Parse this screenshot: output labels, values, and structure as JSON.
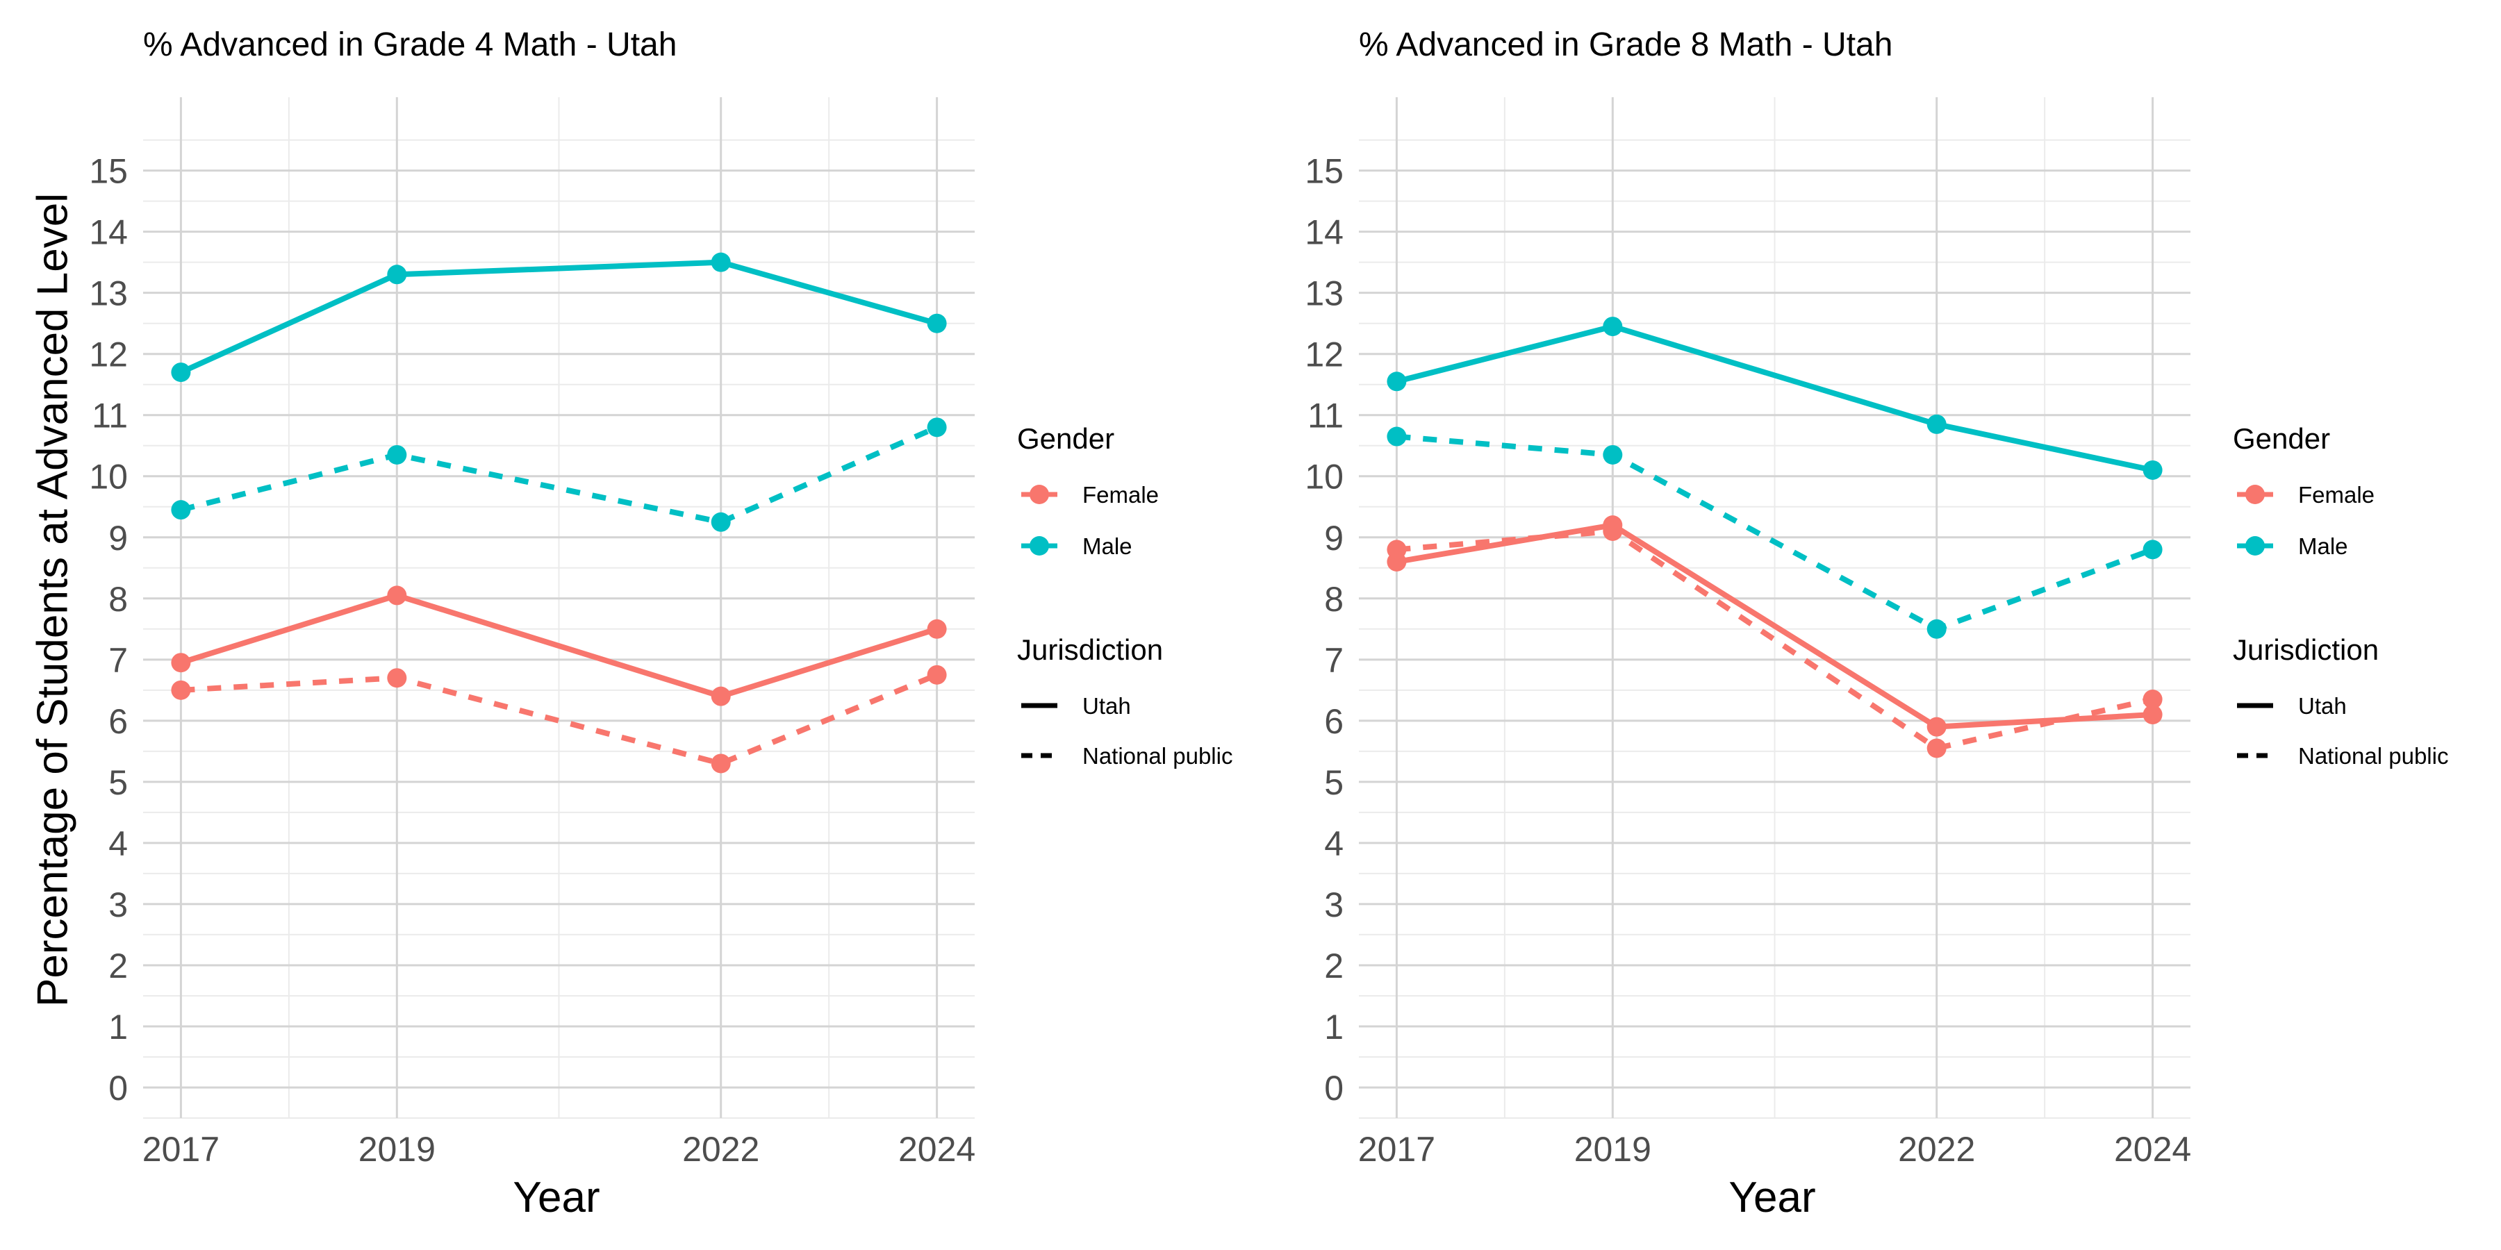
{
  "y_axis_label": "Percentage of Students at Advanced Level",
  "legend": {
    "gender_title": "Gender",
    "jurisdiction_title": "Jurisdiction",
    "gender_items": [
      {
        "label": "Female",
        "color": "#F8766D"
      },
      {
        "label": "Male",
        "color": "#00BFC4"
      }
    ],
    "jurisdiction_items": [
      {
        "label": "Utah",
        "line": "solid"
      },
      {
        "label": "National public",
        "line": "dashed"
      }
    ]
  },
  "chart_data": [
    {
      "type": "line",
      "title": "% Advanced in Grade 4 Math - Utah",
      "xlabel": "Year",
      "ylabel": "Percentage of Students at Advanced Level",
      "x": [
        2017,
        2019,
        2022,
        2024
      ],
      "x_ticks": [
        "2017",
        "2019",
        "2022",
        "2024"
      ],
      "y_ticks": [
        "0",
        "1",
        "2",
        "3",
        "4",
        "5",
        "6",
        "7",
        "8",
        "9",
        "10",
        "11",
        "12",
        "13",
        "14",
        "15"
      ],
      "xlim": [
        2016.65,
        2024.35
      ],
      "ylim": [
        -0.5,
        16.2
      ],
      "grid": true,
      "series": [
        {
          "gender": "Male",
          "jurisdiction": "Utah",
          "color": "#00BFC4",
          "dash": "solid",
          "values": [
            11.7,
            13.3,
            13.5,
            12.5
          ]
        },
        {
          "gender": "Male",
          "jurisdiction": "National public",
          "color": "#00BFC4",
          "dash": "dashed",
          "values": [
            9.45,
            10.35,
            9.25,
            10.8
          ]
        },
        {
          "gender": "Female",
          "jurisdiction": "Utah",
          "color": "#F8766D",
          "dash": "solid",
          "values": [
            6.95,
            8.05,
            6.4,
            7.5
          ]
        },
        {
          "gender": "Female",
          "jurisdiction": "National public",
          "color": "#F8766D",
          "dash": "dashed",
          "values": [
            6.5,
            6.7,
            5.3,
            6.75
          ]
        }
      ]
    },
    {
      "type": "line",
      "title": "% Advanced in Grade 8 Math - Utah",
      "xlabel": "Year",
      "ylabel": "",
      "x": [
        2017,
        2019,
        2022,
        2024
      ],
      "x_ticks": [
        "2017",
        "2019",
        "2022",
        "2024"
      ],
      "y_ticks": [
        "0",
        "1",
        "2",
        "3",
        "4",
        "5",
        "6",
        "7",
        "8",
        "9",
        "10",
        "11",
        "12",
        "13",
        "14",
        "15"
      ],
      "xlim": [
        2016.65,
        2024.35
      ],
      "ylim": [
        -0.5,
        16.2
      ],
      "grid": true,
      "series": [
        {
          "gender": "Male",
          "jurisdiction": "Utah",
          "color": "#00BFC4",
          "dash": "solid",
          "values": [
            11.55,
            12.45,
            10.85,
            10.1
          ]
        },
        {
          "gender": "Male",
          "jurisdiction": "National public",
          "color": "#00BFC4",
          "dash": "dashed",
          "values": [
            10.65,
            10.35,
            7.5,
            8.8
          ]
        },
        {
          "gender": "Female",
          "jurisdiction": "Utah",
          "color": "#F8766D",
          "dash": "solid",
          "values": [
            8.6,
            9.2,
            5.9,
            6.1
          ]
        },
        {
          "gender": "Female",
          "jurisdiction": "National public",
          "color": "#F8766D",
          "dash": "dashed",
          "values": [
            8.8,
            9.1,
            5.55,
            6.35
          ]
        }
      ]
    }
  ]
}
